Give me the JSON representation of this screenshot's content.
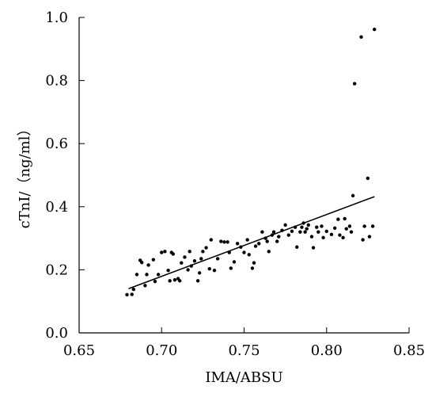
{
  "chart_data": {
    "type": "scatter",
    "title": "",
    "xlabel": "IMA/ABSU",
    "ylabel": "cTnI/（ng/ml）",
    "xlim": [
      0.65,
      0.85
    ],
    "ylim": [
      0.0,
      1.0
    ],
    "xticks": [
      "0.65",
      "0.70",
      "0.75",
      "0.80",
      "0.85"
    ],
    "yticks": [
      "0.0",
      "0.2",
      "0.4",
      "0.6",
      "0.8",
      "1.0"
    ],
    "grid": false,
    "series": [
      {
        "points": [
          [
            0.679,
            0.121
          ],
          [
            0.682,
            0.122
          ],
          [
            0.683,
            0.138
          ],
          [
            0.685,
            0.185
          ],
          [
            0.687,
            0.23
          ],
          [
            0.688,
            0.223
          ],
          [
            0.69,
            0.15
          ],
          [
            0.691,
            0.185
          ],
          [
            0.692,
            0.215
          ],
          [
            0.695,
            0.232
          ],
          [
            0.696,
            0.163
          ],
          [
            0.698,
            0.185
          ],
          [
            0.7,
            0.255
          ],
          [
            0.702,
            0.258
          ],
          [
            0.704,
            0.198
          ],
          [
            0.705,
            0.165
          ],
          [
            0.706,
            0.255
          ],
          [
            0.707,
            0.25
          ],
          [
            0.708,
            0.168
          ],
          [
            0.71,
            0.172
          ],
          [
            0.711,
            0.165
          ],
          [
            0.712,
            0.222
          ],
          [
            0.714,
            0.24
          ],
          [
            0.716,
            0.2
          ],
          [
            0.717,
            0.258
          ],
          [
            0.718,
            0.212
          ],
          [
            0.72,
            0.228
          ],
          [
            0.722,
            0.165
          ],
          [
            0.723,
            0.19
          ],
          [
            0.724,
            0.235
          ],
          [
            0.725,
            0.258
          ],
          [
            0.727,
            0.27
          ],
          [
            0.729,
            0.203
          ],
          [
            0.73,
            0.295
          ],
          [
            0.732,
            0.198
          ],
          [
            0.734,
            0.235
          ],
          [
            0.736,
            0.29
          ],
          [
            0.738,
            0.288
          ],
          [
            0.74,
            0.288
          ],
          [
            0.741,
            0.255
          ],
          [
            0.742,
            0.205
          ],
          [
            0.744,
            0.225
          ],
          [
            0.746,
            0.283
          ],
          [
            0.748,
            0.272
          ],
          [
            0.75,
            0.255
          ],
          [
            0.752,
            0.295
          ],
          [
            0.753,
            0.248
          ],
          [
            0.755,
            0.205
          ],
          [
            0.756,
            0.222
          ],
          [
            0.757,
            0.275
          ],
          [
            0.759,
            0.283
          ],
          [
            0.761,
            0.32
          ],
          [
            0.763,
            0.3
          ],
          [
            0.764,
            0.29
          ],
          [
            0.765,
            0.258
          ],
          [
            0.767,
            0.31
          ],
          [
            0.768,
            0.32
          ],
          [
            0.77,
            0.29
          ],
          [
            0.771,
            0.305
          ],
          [
            0.773,
            0.325
          ],
          [
            0.775,
            0.342
          ],
          [
            0.777,
            0.31
          ],
          [
            0.779,
            0.322
          ],
          [
            0.781,
            0.335
          ],
          [
            0.782,
            0.272
          ],
          [
            0.784,
            0.32
          ],
          [
            0.785,
            0.335
          ],
          [
            0.786,
            0.348
          ],
          [
            0.787,
            0.32
          ],
          [
            0.788,
            0.33
          ],
          [
            0.789,
            0.342
          ],
          [
            0.791,
            0.305
          ],
          [
            0.792,
            0.27
          ],
          [
            0.794,
            0.335
          ],
          [
            0.795,
            0.32
          ],
          [
            0.797,
            0.338
          ],
          [
            0.798,
            0.302
          ],
          [
            0.8,
            0.322
          ],
          [
            0.803,
            0.312
          ],
          [
            0.805,
            0.332
          ],
          [
            0.807,
            0.36
          ],
          [
            0.808,
            0.31
          ],
          [
            0.81,
            0.302
          ],
          [
            0.811,
            0.362
          ],
          [
            0.812,
            0.33
          ],
          [
            0.814,
            0.338
          ],
          [
            0.815,
            0.32
          ],
          [
            0.816,
            0.435
          ],
          [
            0.817,
            0.79
          ],
          [
            0.821,
            0.938
          ],
          [
            0.822,
            0.295
          ],
          [
            0.823,
            0.338
          ],
          [
            0.825,
            0.49
          ],
          [
            0.826,
            0.305
          ],
          [
            0.828,
            0.338
          ],
          [
            0.829,
            0.962
          ]
        ]
      }
    ],
    "trendline": {
      "x": [
        0.68,
        0.829
      ],
      "y": [
        0.14,
        0.432
      ]
    }
  }
}
